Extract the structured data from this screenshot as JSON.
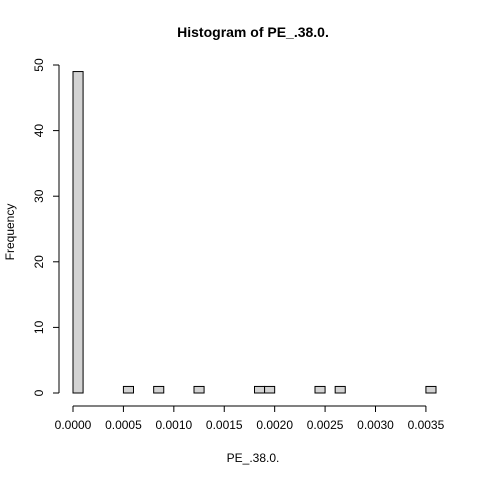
{
  "chart_data": {
    "type": "bar",
    "title": "Histogram of PE_.38.0.",
    "xlabel": "PE_.38.0.",
    "ylabel": "Frequency",
    "bin_width": 0.0001,
    "bins": [
      {
        "start": 0.0,
        "end": 0.0001,
        "count": 49
      },
      {
        "start": 0.0005,
        "end": 0.0006,
        "count": 1
      },
      {
        "start": 0.0008,
        "end": 0.0009,
        "count": 1
      },
      {
        "start": 0.0012,
        "end": 0.0013,
        "count": 1
      },
      {
        "start": 0.0018,
        "end": 0.0019,
        "count": 1
      },
      {
        "start": 0.0019,
        "end": 0.002,
        "count": 1
      },
      {
        "start": 0.0024,
        "end": 0.0025,
        "count": 1
      },
      {
        "start": 0.0026,
        "end": 0.0027,
        "count": 1
      },
      {
        "start": 0.0035,
        "end": 0.0036,
        "count": 1
      }
    ],
    "xlim": [
      0,
      0.0036
    ],
    "ylim": [
      0,
      50
    ],
    "x_ticks": [
      0.0,
      0.0005,
      0.001,
      0.0015,
      0.002,
      0.0025,
      0.003,
      0.0035
    ],
    "x_tick_labels": [
      "0.0000",
      "0.0005",
      "0.0010",
      "0.0015",
      "0.0020",
      "0.0025",
      "0.0030",
      "0.0035"
    ],
    "y_ticks": [
      0,
      10,
      20,
      30,
      40,
      50
    ],
    "y_tick_labels": [
      "0",
      "10",
      "20",
      "30",
      "40",
      "50"
    ],
    "grid": false,
    "colors": {
      "bar_fill": "#d3d3d3",
      "bar_stroke": "#000000"
    }
  }
}
